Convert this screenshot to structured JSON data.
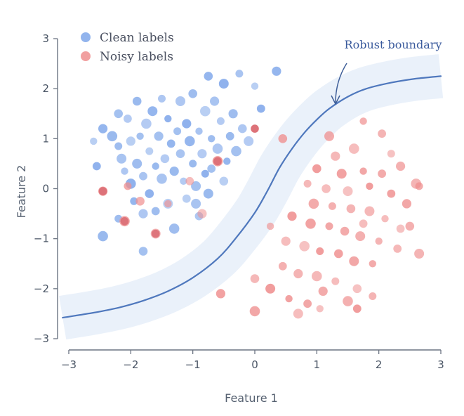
{
  "chart_data": {
    "type": "scatter",
    "title": "",
    "xlabel": "Feature 1",
    "ylabel": "Feature 2",
    "xlim": [
      -3,
      3
    ],
    "ylim": [
      -3,
      3
    ],
    "xticks": [
      -3,
      -2,
      -1,
      0,
      1,
      2,
      3
    ],
    "yticks": [
      -3,
      -2,
      -1,
      0,
      1,
      2,
      3
    ],
    "x_tick_labels": [
      "−3",
      "−2",
      "−1",
      "0",
      "1",
      "2",
      "3"
    ],
    "y_tick_labels": [
      "−3",
      "−2",
      "−1",
      "0",
      "1",
      "2",
      "3"
    ],
    "grid": false,
    "legend_position": "top-left",
    "legend": [
      {
        "label": "Clean labels",
        "color": "#7fa7ea"
      },
      {
        "label": "Noisy labels",
        "color": "#ef8f8f"
      }
    ],
    "annotation": {
      "text": "Robust boundary"
    },
    "boundary": {
      "color": "#4f78bd",
      "band_color": "#e6eef9",
      "band_halfwidth": 0.42,
      "points": [
        [
          -3.1,
          -2.58
        ],
        [
          -2.6,
          -2.48
        ],
        [
          -2.2,
          -2.38
        ],
        [
          -1.8,
          -2.24
        ],
        [
          -1.4,
          -2.05
        ],
        [
          -1.0,
          -1.78
        ],
        [
          -0.6,
          -1.4
        ],
        [
          -0.3,
          -0.98
        ],
        [
          0.0,
          -0.48
        ],
        [
          0.2,
          -0.05
        ],
        [
          0.4,
          0.42
        ],
        [
          0.6,
          0.8
        ],
        [
          0.8,
          1.12
        ],
        [
          1.0,
          1.38
        ],
        [
          1.2,
          1.6
        ],
        [
          1.5,
          1.84
        ],
        [
          1.8,
          2.0
        ],
        [
          2.2,
          2.12
        ],
        [
          2.6,
          2.2
        ],
        [
          3.0,
          2.25
        ]
      ]
    },
    "series": [
      {
        "name": "Clean labels",
        "color": "#7fa7ea",
        "points": [
          [
            -2.6,
            0.95
          ],
          [
            -2.55,
            0.45
          ],
          [
            -2.45,
            1.2
          ],
          [
            -2.3,
            1.05
          ],
          [
            -2.2,
            0.85
          ],
          [
            -2.2,
            1.5
          ],
          [
            -2.15,
            0.6
          ],
          [
            -2.1,
            0.35
          ],
          [
            -2.05,
            1.4
          ],
          [
            -2.0,
            0.95
          ],
          [
            -2.0,
            0.1
          ],
          [
            -1.95,
            -0.25
          ],
          [
            -1.9,
            1.75
          ],
          [
            -1.9,
            0.5
          ],
          [
            -1.85,
            1.05
          ],
          [
            -1.8,
            0.25
          ],
          [
            -1.8,
            -0.5
          ],
          [
            -1.75,
            1.3
          ],
          [
            -1.7,
            0.75
          ],
          [
            -1.7,
            -0.1
          ],
          [
            -1.65,
            1.55
          ],
          [
            -1.6,
            0.45
          ],
          [
            -1.6,
            -0.45
          ],
          [
            -1.55,
            1.05
          ],
          [
            -1.5,
            0.2
          ],
          [
            -1.5,
            1.8
          ],
          [
            -1.45,
            0.6
          ],
          [
            -1.4,
            -0.3
          ],
          [
            -1.4,
            1.4
          ],
          [
            -1.35,
            0.9
          ],
          [
            -1.3,
            0.35
          ],
          [
            -1.3,
            -0.8
          ],
          [
            -1.25,
            1.15
          ],
          [
            -1.2,
            0.7
          ],
          [
            -1.2,
            1.75
          ],
          [
            -1.15,
            0.15
          ],
          [
            -1.1,
            -0.2
          ],
          [
            -1.1,
            1.3
          ],
          [
            -1.05,
            0.95
          ],
          [
            -1.0,
            0.5
          ],
          [
            -1.0,
            1.9
          ],
          [
            -0.95,
            0.05
          ],
          [
            -0.9,
            1.15
          ],
          [
            -0.9,
            -0.55
          ],
          [
            -0.85,
            0.7
          ],
          [
            -0.8,
            1.55
          ],
          [
            -0.8,
            0.3
          ],
          [
            -0.75,
            2.25
          ],
          [
            -0.75,
            -0.1
          ],
          [
            -0.7,
            1.0
          ],
          [
            -0.7,
            0.4
          ],
          [
            -0.65,
            1.75
          ],
          [
            -0.6,
            0.8
          ],
          [
            -0.55,
            1.35
          ],
          [
            -0.5,
            0.15
          ],
          [
            -0.5,
            2.1
          ],
          [
            -0.45,
            0.55
          ],
          [
            -0.4,
            1.05
          ],
          [
            -0.35,
            1.5
          ],
          [
            -0.3,
            0.75
          ],
          [
            -0.25,
            2.3
          ],
          [
            -0.2,
            1.2
          ],
          [
            -0.1,
            0.95
          ],
          [
            0.0,
            2.05
          ],
          [
            0.1,
            1.6
          ],
          [
            0.35,
            2.35
          ],
          [
            -2.45,
            -0.95
          ],
          [
            -2.2,
            -0.6
          ],
          [
            -1.8,
            -1.25
          ],
          [
            -0.95,
            -0.3
          ]
        ]
      },
      {
        "name": "Noisy labels",
        "color": "#ef8f8f",
        "points": [
          [
            -2.45,
            -0.05
          ],
          [
            -2.1,
            -0.65
          ],
          [
            -2.05,
            0.05
          ],
          [
            -1.85,
            -0.25
          ],
          [
            -1.6,
            -0.9
          ],
          [
            -1.4,
            -0.3
          ],
          [
            -1.05,
            0.15
          ],
          [
            -0.85,
            -0.5
          ],
          [
            -0.6,
            0.55
          ],
          [
            0.0,
            1.2
          ],
          [
            0.45,
            1.0
          ],
          [
            1.2,
            1.05
          ],
          [
            1.75,
            1.35
          ],
          [
            2.05,
            1.1
          ],
          [
            1.3,
            0.65
          ],
          [
            1.6,
            0.8
          ],
          [
            2.2,
            0.7
          ],
          [
            1.0,
            0.4
          ],
          [
            1.4,
            0.3
          ],
          [
            1.75,
            0.35
          ],
          [
            2.05,
            0.3
          ],
          [
            2.35,
            0.45
          ],
          [
            2.6,
            0.1
          ],
          [
            0.85,
            0.1
          ],
          [
            1.15,
            0.0
          ],
          [
            1.5,
            -0.05
          ],
          [
            1.85,
            0.05
          ],
          [
            2.2,
            -0.1
          ],
          [
            2.45,
            -0.3
          ],
          [
            0.95,
            -0.3
          ],
          [
            1.25,
            -0.35
          ],
          [
            1.55,
            -0.4
          ],
          [
            1.85,
            -0.45
          ],
          [
            2.1,
            -0.6
          ],
          [
            2.35,
            -0.8
          ],
          [
            0.6,
            -0.55
          ],
          [
            0.9,
            -0.7
          ],
          [
            1.2,
            -0.75
          ],
          [
            1.45,
            -0.85
          ],
          [
            1.7,
            -0.95
          ],
          [
            2.0,
            -1.05
          ],
          [
            2.3,
            -1.2
          ],
          [
            0.5,
            -1.05
          ],
          [
            0.8,
            -1.15
          ],
          [
            1.05,
            -1.25
          ],
          [
            1.35,
            -1.3
          ],
          [
            1.6,
            -1.45
          ],
          [
            1.9,
            -1.5
          ],
          [
            0.45,
            -1.55
          ],
          [
            0.7,
            -1.7
          ],
          [
            1.0,
            -1.75
          ],
          [
            1.3,
            -1.85
          ],
          [
            1.65,
            -2.0
          ],
          [
            0.25,
            -2.0
          ],
          [
            0.55,
            -2.2
          ],
          [
            0.85,
            -2.3
          ],
          [
            1.1,
            -2.05
          ],
          [
            1.5,
            -2.25
          ],
          [
            1.9,
            -2.15
          ],
          [
            0.0,
            -1.8
          ],
          [
            0.7,
            -2.5
          ],
          [
            1.05,
            -2.4
          ],
          [
            1.65,
            -2.4
          ],
          [
            -0.55,
            -2.1
          ],
          [
            0.0,
            -2.45
          ],
          [
            2.65,
            0.05
          ],
          [
            2.5,
            -0.75
          ],
          [
            2.65,
            -1.3
          ],
          [
            0.25,
            -0.75
          ],
          [
            1.75,
            -0.7
          ]
        ]
      }
    ]
  }
}
